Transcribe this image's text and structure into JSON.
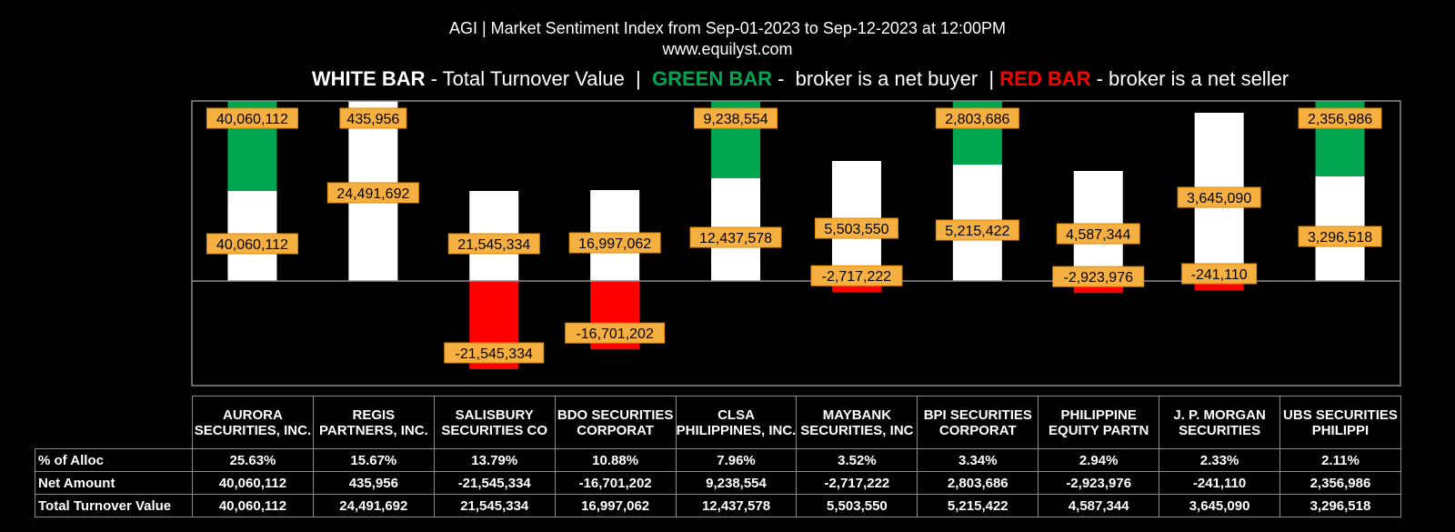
{
  "header": {
    "title": "AGI | Market Sentiment Index from Sep-01-2023 to Sep-12-2023 at 12:00PM",
    "site": "www.equilyst.com"
  },
  "legend": {
    "white_key": "WHITE BAR",
    "white_desc": " - Total Turnover Value  |  ",
    "green_key": "GREEN BAR",
    "green_desc": " -  broker is a net buyer  | ",
    "red_key": "RED BAR",
    "red_desc": " - broker is a net seller"
  },
  "colors": {
    "background": "#000000",
    "turnover": "#ffffff",
    "net_buyer": "#00a650",
    "net_seller": "#ff0000",
    "label_fill": "#f5b041"
  },
  "table": {
    "row_labels": [
      "% of Alloc",
      "Net Amount",
      "Total Turnover Value"
    ]
  },
  "chart_data": {
    "type": "bar",
    "categories": [
      "AURORA SECURITIES, INC.",
      "REGIS PARTNERS, INC.",
      "SALISBURY SECURITIES CO",
      "BDO SECURITIES CORPORAT",
      "CLSA PHILIPPINES, INC.",
      "MAYBANK SECURITIES, INC",
      "BPI SECURITIES CORPORAT",
      "PHILIPPINE EQUITY PARTN",
      "J. P. MORGAN SECURITIES",
      "UBS SECURITIES PHILIPPI"
    ],
    "alloc": [
      "25.63%",
      "15.67%",
      "13.79%",
      "10.88%",
      "7.96%",
      "3.52%",
      "3.34%",
      "2.94%",
      "2.33%",
      "2.11%"
    ],
    "series": [
      {
        "name": "Total Turnover Value",
        "values": [
          40060112,
          24491692,
          21545334,
          16997062,
          12437578,
          5503550,
          5215422,
          4587344,
          3645090,
          3296518
        ],
        "labels": [
          "40,060,112",
          "24,491,692",
          "21,545,334",
          "16,997,062",
          "12,437,578",
          "5,503,550",
          "5,215,422",
          "4,587,344",
          "3,645,090",
          "3,296,518"
        ]
      },
      {
        "name": "Net Amount",
        "values": [
          40060112,
          435956,
          -21545334,
          -16701202,
          9238554,
          -2717222,
          2803686,
          -2923976,
          -241110,
          2356986
        ],
        "labels": [
          "40,060,112",
          "435,956",
          "-21,545,334",
          "-16,701,202",
          "9,238,554",
          "-2,717,222",
          "2,803,686",
          "-2,923,976",
          "-241,110",
          "2,356,986"
        ]
      }
    ]
  }
}
